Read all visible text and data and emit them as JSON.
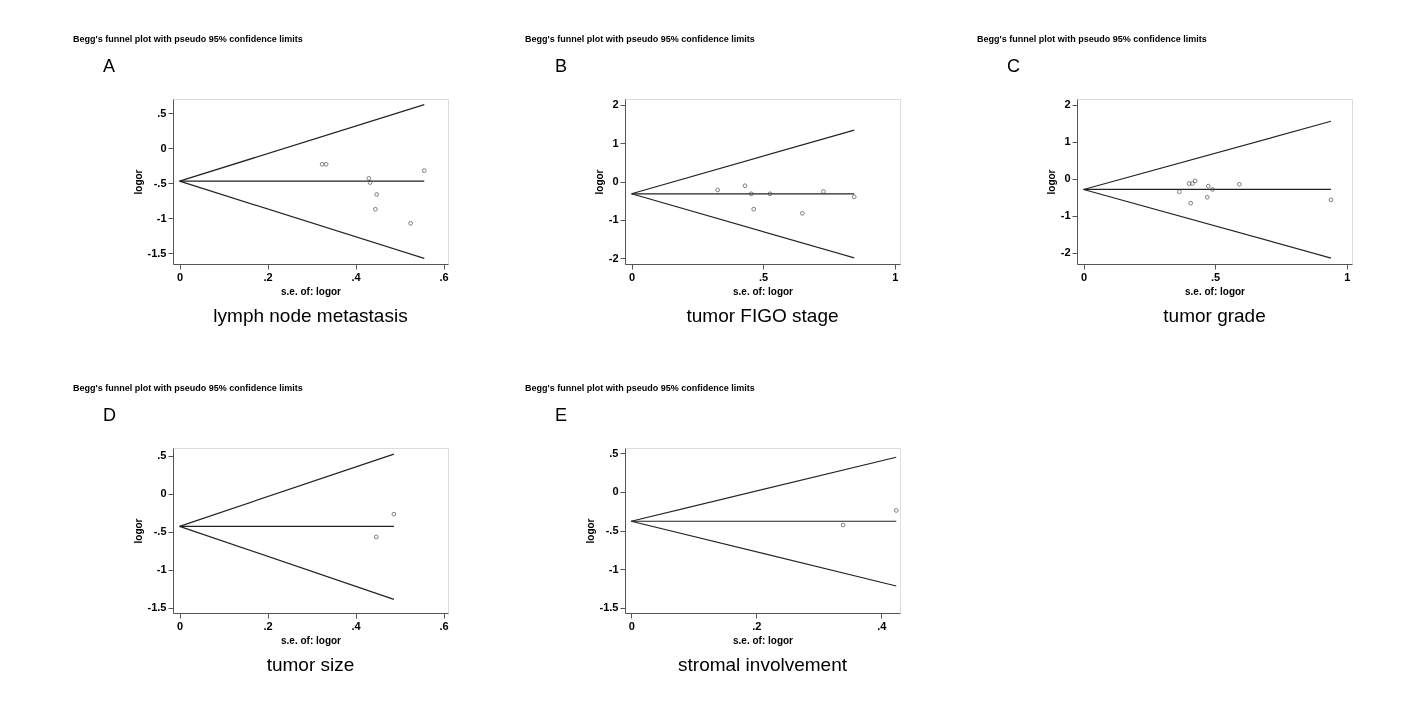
{
  "chart_data": [
    {
      "type": "scatter",
      "title": "Begg's funnel plot with pseudo 95% confidence limits",
      "xlabel": "s.e. of: logor",
      "ylabel": "logor",
      "annotations": [
        "A",
        "lymph node metastasis"
      ],
      "grid": false,
      "xlim": [
        -0.015,
        0.61
      ],
      "ylim": [
        -1.65,
        0.7
      ],
      "xticks": [
        0,
        {
          "value": 0.2,
          "label": ".2"
        },
        {
          "value": 0.4,
          "label": ".4"
        },
        {
          "value": 0.6,
          "label": ".6"
        }
      ],
      "yticks": [
        {
          "value": -1.5,
          "label": "-1.5"
        },
        -1,
        {
          "value": -0.5,
          "label": "-.5"
        },
        0,
        {
          "value": 0.5,
          "label": ".5"
        }
      ],
      "series": [
        {
          "type": "line",
          "color": "#222222",
          "x": [
            0,
            0.556
          ],
          "values": [
            -0.47,
            0.62
          ]
        },
        {
          "type": "line",
          "color": "#222222",
          "x": [
            0,
            0.556
          ],
          "values": [
            -0.47,
            -1.57
          ]
        },
        {
          "type": "line",
          "color": "#222222",
          "x": [
            0,
            0.556
          ],
          "values": [
            -0.47,
            -0.47
          ]
        },
        {
          "marker": "circle",
          "color": "#444444",
          "x": [
            0.324,
            0.333,
            0.43,
            0.433,
            0.448,
            0.445,
            0.525,
            0.556
          ],
          "values": [
            -0.23,
            -0.23,
            -0.43,
            -0.49,
            -0.66,
            -0.87,
            -1.07,
            -0.32
          ]
        }
      ]
    },
    {
      "type": "scatter",
      "title": "Begg's funnel plot with pseudo 95% confidence limits",
      "xlabel": "s.e. of: logor",
      "ylabel": "logor",
      "annotations": [
        "B",
        "tumor FIGO stage"
      ],
      "grid": false,
      "xlim": [
        -0.025,
        1.02
      ],
      "ylim": [
        -2.15,
        2.15
      ],
      "xticks": [
        0,
        {
          "value": 0.5,
          "label": ".5"
        },
        1
      ],
      "yticks": [
        -2,
        -1,
        0,
        1,
        2
      ],
      "series": [
        {
          "type": "line",
          "color": "#222222",
          "x": [
            0,
            0.846
          ],
          "values": [
            -0.32,
            1.34
          ]
        },
        {
          "type": "line",
          "color": "#222222",
          "x": [
            0,
            0.846
          ],
          "values": [
            -0.32,
            -1.99
          ]
        },
        {
          "type": "line",
          "color": "#222222",
          "x": [
            0,
            0.846
          ],
          "values": [
            -0.32,
            -0.32
          ]
        },
        {
          "marker": "circle",
          "color": "#444444",
          "x": [
            0.327,
            0.431,
            0.455,
            0.464,
            0.526,
            0.649,
            0.729,
            0.846
          ],
          "values": [
            -0.22,
            -0.11,
            -0.32,
            -0.72,
            -0.32,
            -0.83,
            -0.26,
            -0.4
          ]
        }
      ]
    },
    {
      "type": "scatter",
      "title": "Begg's funnel plot with pseudo 95% confidence limits",
      "xlabel": "s.e. of: logor",
      "ylabel": "logor",
      "annotations": [
        "C",
        "tumor grade"
      ],
      "grid": false,
      "xlim": [
        -0.025,
        1.02
      ],
      "ylim": [
        -2.3,
        2.15
      ],
      "xticks": [
        0,
        {
          "value": 0.5,
          "label": ".5"
        },
        1
      ],
      "yticks": [
        -2,
        -1,
        0,
        1,
        2
      ],
      "series": [
        {
          "type": "line",
          "color": "#222222",
          "x": [
            0,
            0.94
          ],
          "values": [
            -0.29,
            1.55
          ]
        },
        {
          "type": "line",
          "color": "#222222",
          "x": [
            0,
            0.94
          ],
          "values": [
            -0.29,
            -2.14
          ]
        },
        {
          "type": "line",
          "color": "#222222",
          "x": [
            0,
            0.94
          ],
          "values": [
            -0.29,
            -0.29
          ]
        },
        {
          "marker": "circle",
          "color": "#444444",
          "x": [
            0.364,
            0.401,
            0.413,
            0.424,
            0.407,
            0.474,
            0.47,
            0.49,
            0.592,
            0.94
          ],
          "values": [
            -0.35,
            -0.13,
            -0.13,
            -0.06,
            -0.66,
            -0.2,
            -0.5,
            -0.29,
            -0.15,
            -0.57
          ]
        }
      ]
    },
    {
      "type": "scatter",
      "title": "Begg's funnel plot with pseudo 95% confidence limits",
      "xlabel": "s.e. of: logor",
      "ylabel": "logor",
      "annotations": [
        "D",
        "tumor size"
      ],
      "grid": false,
      "xlim": [
        -0.015,
        0.61
      ],
      "ylim": [
        -1.57,
        0.6
      ],
      "xticks": [
        0,
        {
          "value": 0.2,
          "label": ".2"
        },
        {
          "value": 0.4,
          "label": ".4"
        },
        {
          "value": 0.6,
          "label": ".6"
        }
      ],
      "yticks": [
        {
          "value": -1.5,
          "label": "-1.5"
        },
        -1,
        {
          "value": -0.5,
          "label": "-.5"
        },
        0,
        {
          "value": 0.5,
          "label": ".5"
        }
      ],
      "series": [
        {
          "type": "line",
          "color": "#222222",
          "x": [
            0,
            0.487
          ],
          "values": [
            -0.43,
            0.52
          ]
        },
        {
          "type": "line",
          "color": "#222222",
          "x": [
            0,
            0.487
          ],
          "values": [
            -0.43,
            -1.39
          ]
        },
        {
          "type": "line",
          "color": "#222222",
          "x": [
            0,
            0.487
          ],
          "values": [
            -0.43,
            -0.43
          ]
        },
        {
          "marker": "circle",
          "color": "#444444",
          "x": [
            0.447,
            0.487
          ],
          "values": [
            -0.57,
            -0.27
          ]
        }
      ]
    },
    {
      "type": "scatter",
      "title": "Begg's funnel plot with pseudo 95% confidence limits",
      "xlabel": "s.e. of: logor",
      "ylabel": "logor",
      "annotations": [
        "E",
        "stromal involvement"
      ],
      "grid": false,
      "xlim": [
        -0.01,
        0.43
      ],
      "ylim": [
        -1.57,
        0.57
      ],
      "xticks": [
        0,
        {
          "value": 0.2,
          "label": ".2"
        },
        {
          "value": 0.4,
          "label": ".4"
        }
      ],
      "yticks": [
        {
          "value": -1.5,
          "label": "-1.5"
        },
        -1,
        {
          "value": -0.5,
          "label": "-.5"
        },
        0,
        {
          "value": 0.5,
          "label": ".5"
        }
      ],
      "series": [
        {
          "type": "line",
          "color": "#222222",
          "x": [
            0,
            0.424
          ],
          "values": [
            -0.38,
            0.45
          ]
        },
        {
          "type": "line",
          "color": "#222222",
          "x": [
            0,
            0.424
          ],
          "values": [
            -0.38,
            -1.22
          ]
        },
        {
          "type": "line",
          "color": "#222222",
          "x": [
            0,
            0.424
          ],
          "values": [
            -0.38,
            -0.38
          ]
        },
        {
          "marker": "circle",
          "color": "#444444",
          "x": [
            0.339,
            0.424
          ],
          "values": [
            -0.43,
            -0.24
          ]
        }
      ]
    }
  ]
}
